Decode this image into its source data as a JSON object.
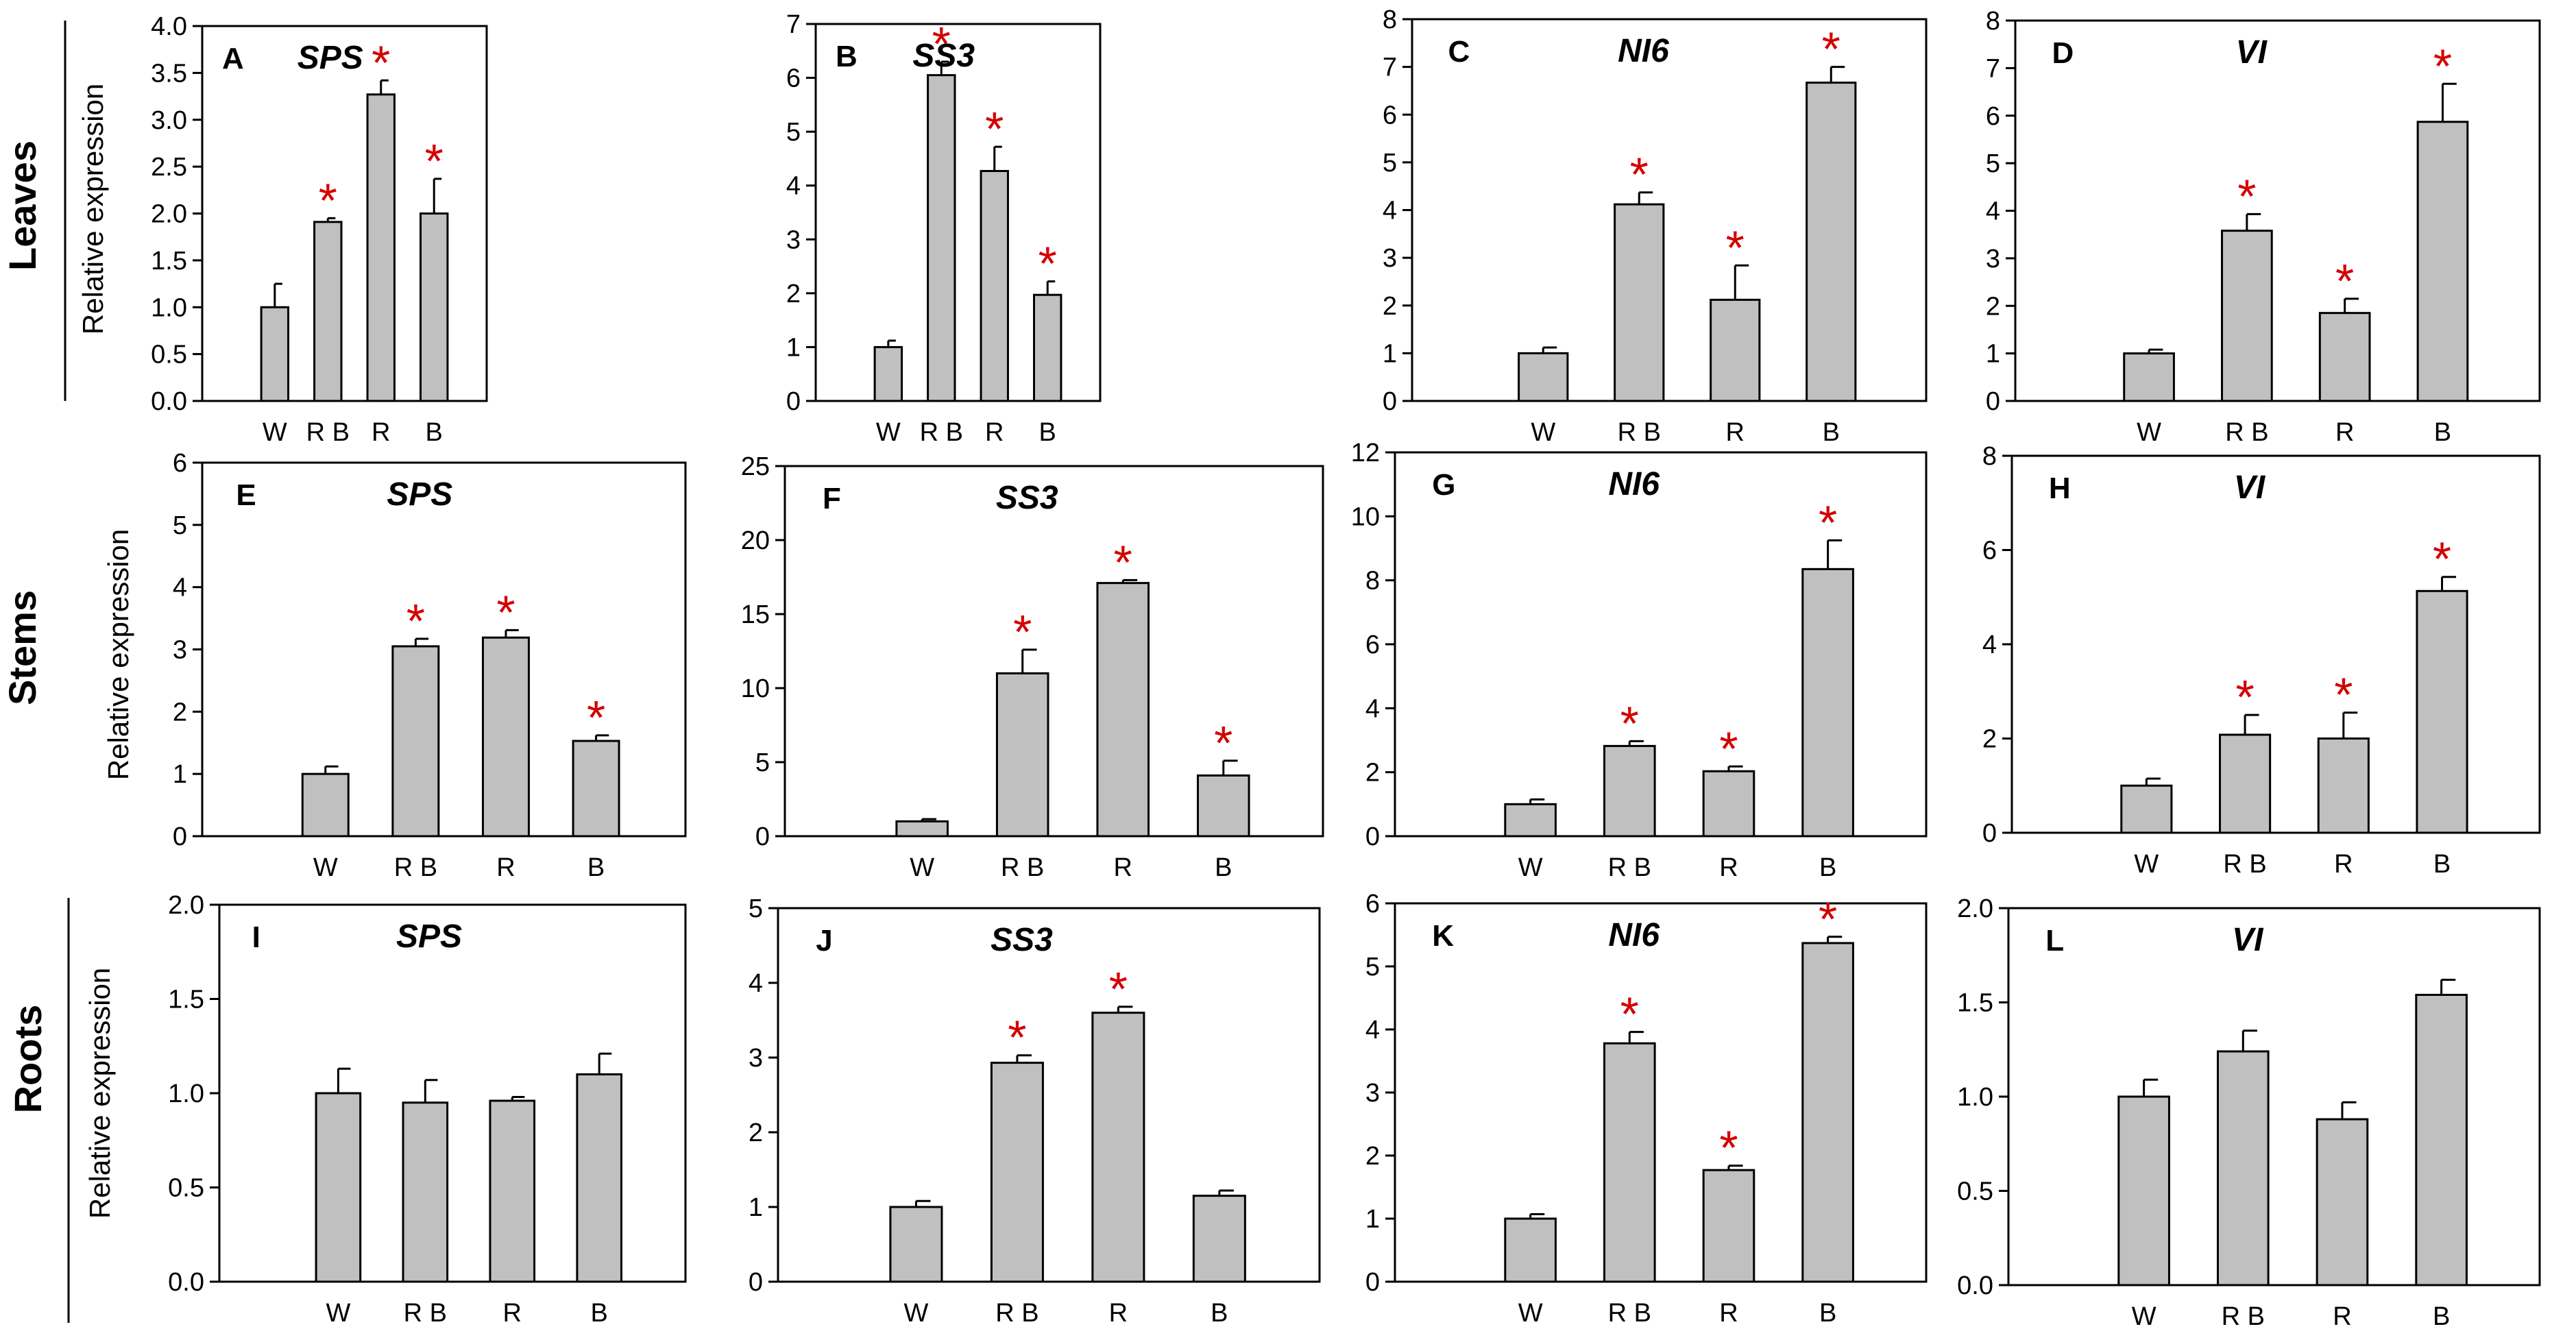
{
  "colors": {
    "bar": "#c0c0c0",
    "star": "#d40000",
    "axis": "#000000"
  },
  "rows": [
    {
      "label": "Leaves",
      "ylabel": "Relative expression"
    },
    {
      "label": "Stems",
      "ylabel": "Relative expression"
    },
    {
      "label": "Roots",
      "ylabel": "Relative expression"
    }
  ],
  "chart_data": [
    {
      "type": "bar",
      "panel": "A",
      "title": "SPS",
      "categories": [
        "W",
        "R B",
        "R",
        "B"
      ],
      "values": [
        1.0,
        1.91,
        3.27,
        2.0
      ],
      "errors": [
        0.25,
        0.04,
        0.15,
        0.37
      ],
      "significant": [
        false,
        true,
        true,
        true
      ],
      "ylim": [
        0,
        4.0
      ],
      "yticks": [
        "0.0",
        "0.5",
        "1.0",
        "1.5",
        "2.0",
        "2.5",
        "3.0",
        "3.5",
        "4.0"
      ],
      "ylabel": "Relative expression",
      "star": "*"
    },
    {
      "type": "bar",
      "panel": "B",
      "title": "SS3",
      "categories": [
        "W",
        "R B",
        "R",
        "B"
      ],
      "values": [
        1.0,
        6.05,
        4.27,
        1.97
      ],
      "errors": [
        0.12,
        0.25,
        0.45,
        0.25
      ],
      "significant": [
        false,
        true,
        true,
        true
      ],
      "ylim": [
        0,
        7
      ],
      "yticks": [
        "0",
        "1",
        "2",
        "3",
        "4",
        "5",
        "6",
        "7"
      ],
      "ylabel": "",
      "star": "*"
    },
    {
      "type": "bar",
      "panel": "C",
      "title": "NI6",
      "categories": [
        "W",
        "R B",
        "R",
        "B"
      ],
      "values": [
        1.0,
        4.12,
        2.12,
        6.67
      ],
      "errors": [
        0.12,
        0.25,
        0.72,
        0.33
      ],
      "significant": [
        false,
        true,
        true,
        true
      ],
      "ylim": [
        0,
        8
      ],
      "yticks": [
        "0",
        "1",
        "2",
        "3",
        "4",
        "5",
        "6",
        "7",
        "8"
      ],
      "ylabel": "",
      "star": "*"
    },
    {
      "type": "bar",
      "panel": "D",
      "title": "VI",
      "categories": [
        "W",
        "R B",
        "R",
        "B"
      ],
      "values": [
        1.0,
        3.58,
        1.85,
        5.87
      ],
      "errors": [
        0.08,
        0.35,
        0.3,
        0.8
      ],
      "significant": [
        false,
        true,
        true,
        true
      ],
      "ylim": [
        0,
        8
      ],
      "yticks": [
        "0",
        "1",
        "2",
        "3",
        "4",
        "5",
        "6",
        "7",
        "8"
      ],
      "ylabel": "",
      "star": "*"
    },
    {
      "type": "bar",
      "panel": "E",
      "title": "SPS",
      "categories": [
        "W",
        "R B",
        "R",
        "B"
      ],
      "values": [
        1.0,
        3.05,
        3.19,
        1.53
      ],
      "errors": [
        0.12,
        0.12,
        0.12,
        0.09
      ],
      "significant": [
        false,
        true,
        true,
        true
      ],
      "ylim": [
        0,
        6
      ],
      "yticks": [
        "0",
        "1",
        "2",
        "3",
        "4",
        "5",
        "6"
      ],
      "ylabel": "Relative expression",
      "star": "*"
    },
    {
      "type": "bar",
      "panel": "F",
      "title": "SS3",
      "categories": [
        "W",
        "R B",
        "R",
        "B"
      ],
      "values": [
        1.0,
        11.0,
        17.1,
        4.1
      ],
      "errors": [
        0.15,
        1.6,
        0.2,
        1.0
      ],
      "significant": [
        false,
        true,
        true,
        true
      ],
      "ylim": [
        0,
        25
      ],
      "yticks": [
        "0",
        "5",
        "10",
        "15",
        "20",
        "25"
      ],
      "ylabel": "",
      "star": "*"
    },
    {
      "type": "bar",
      "panel": "G",
      "title": "NI6",
      "categories": [
        "W",
        "R B",
        "R",
        "B"
      ],
      "values": [
        1.0,
        2.82,
        2.03,
        8.35
      ],
      "errors": [
        0.15,
        0.15,
        0.15,
        0.9
      ],
      "significant": [
        false,
        true,
        true,
        true
      ],
      "ylim": [
        0,
        12
      ],
      "yticks": [
        "0",
        "2",
        "4",
        "6",
        "8",
        "10",
        "12"
      ],
      "ylabel": "",
      "star": "*"
    },
    {
      "type": "bar",
      "panel": "H",
      "title": "VI",
      "categories": [
        "W",
        "R B",
        "R",
        "B"
      ],
      "values": [
        1.0,
        2.08,
        2.0,
        5.13
      ],
      "errors": [
        0.15,
        0.42,
        0.55,
        0.3
      ],
      "significant": [
        false,
        true,
        true,
        true
      ],
      "ylim": [
        0,
        8
      ],
      "yticks": [
        "0",
        "2",
        "4",
        "6",
        "8"
      ],
      "ylabel": "",
      "star": "*"
    },
    {
      "type": "bar",
      "panel": "I",
      "title": "SPS",
      "categories": [
        "W",
        "R B",
        "R",
        "B"
      ],
      "values": [
        1.0,
        0.95,
        0.96,
        1.1
      ],
      "errors": [
        0.13,
        0.12,
        0.02,
        0.11
      ],
      "significant": [
        false,
        false,
        false,
        false
      ],
      "ylim": [
        0,
        2.0
      ],
      "yticks": [
        "0.0",
        "0.5",
        "1.0",
        "1.5",
        "2.0"
      ],
      "ylabel": "Relative expression",
      "star": "*"
    },
    {
      "type": "bar",
      "panel": "J",
      "title": "SS3",
      "categories": [
        "W",
        "R B",
        "R",
        "B"
      ],
      "values": [
        1.0,
        2.93,
        3.6,
        1.15
      ],
      "errors": [
        0.08,
        0.1,
        0.08,
        0.07
      ],
      "significant": [
        false,
        true,
        true,
        false
      ],
      "ylim": [
        0,
        5
      ],
      "yticks": [
        "0",
        "1",
        "2",
        "3",
        "4",
        "5"
      ],
      "ylabel": "",
      "star": "*"
    },
    {
      "type": "bar",
      "panel": "K",
      "title": "NI6",
      "categories": [
        "W",
        "R B",
        "R",
        "B"
      ],
      "values": [
        1.0,
        3.78,
        1.77,
        5.37
      ],
      "errors": [
        0.07,
        0.18,
        0.07,
        0.1
      ],
      "significant": [
        false,
        true,
        true,
        true
      ],
      "ylim": [
        0,
        6
      ],
      "yticks": [
        "0",
        "1",
        "2",
        "3",
        "4",
        "5",
        "6"
      ],
      "ylabel": "",
      "star": "*"
    },
    {
      "type": "bar",
      "panel": "L",
      "title": "VI",
      "categories": [
        "W",
        "R B",
        "R",
        "B"
      ],
      "values": [
        1.0,
        1.24,
        0.88,
        1.54
      ],
      "errors": [
        0.09,
        0.11,
        0.09,
        0.08
      ],
      "significant": [
        false,
        false,
        false,
        false
      ],
      "ylim": [
        0,
        2.0
      ],
      "yticks": [
        "0.0",
        "0.5",
        "1.0",
        "1.5",
        "2.0"
      ],
      "ylabel": "",
      "star": "*"
    }
  ]
}
